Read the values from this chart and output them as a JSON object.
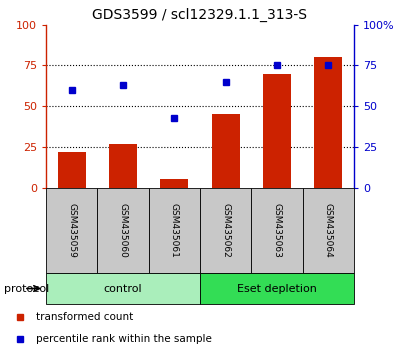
{
  "title": "GDS3599 / scl12329.1.1_313-S",
  "samples": [
    "GSM435059",
    "GSM435060",
    "GSM435061",
    "GSM435062",
    "GSM435063",
    "GSM435064"
  ],
  "bar_values": [
    22,
    27,
    5,
    45,
    70,
    80
  ],
  "scatter_values": [
    60,
    63,
    43,
    65,
    75,
    75
  ],
  "bar_color": "#cc2200",
  "scatter_color": "#0000cc",
  "groups": [
    {
      "label": "control",
      "start": 0,
      "end": 3,
      "color": "#aaeebb"
    },
    {
      "label": "Eset depletion",
      "start": 3,
      "end": 6,
      "color": "#33dd55"
    }
  ],
  "ylim": [
    0,
    100
  ],
  "yticks": [
    0,
    25,
    50,
    75,
    100
  ],
  "left_axis_color": "#cc2200",
  "right_axis_color": "#0000cc",
  "protocol_label": "protocol",
  "legend_items": [
    {
      "label": "transformed count",
      "color": "#cc2200"
    },
    {
      "label": "percentile rank within the sample",
      "color": "#0000cc"
    }
  ],
  "sample_box_color": "#c8c8c8",
  "bg_color": "#ffffff"
}
